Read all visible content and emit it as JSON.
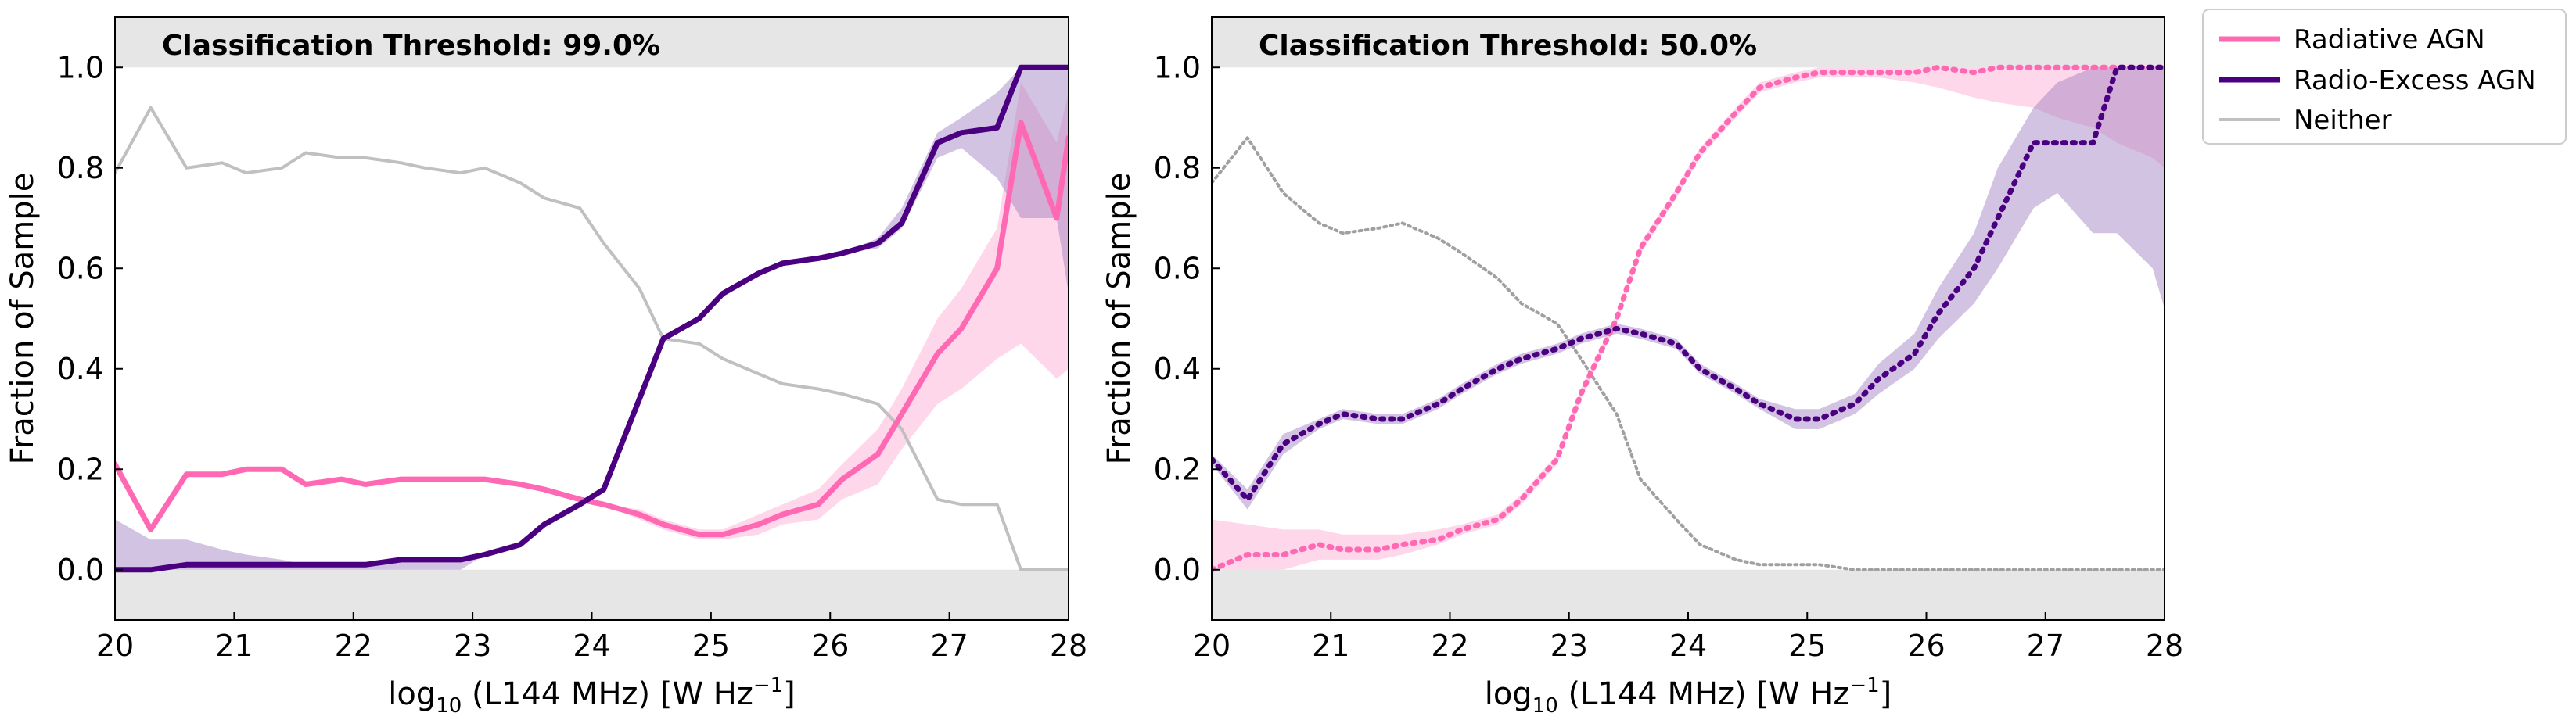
{
  "colors": {
    "radiative": "#ff69b4",
    "radiative_band": "#ffb6d9",
    "radio_excess": "#4b0082",
    "radio_excess_band": "#9b7bbf",
    "neither": "#c0c0c0",
    "neither_dotted": "#a0a0a0",
    "shade": "#e6e6e6"
  },
  "legend": {
    "radiative": "Radiative AGN",
    "radio_excess": "Radio-Excess AGN",
    "neither": "Neither"
  },
  "axes": {
    "xlabel_prefix": "log",
    "xlabel_sub": "10",
    "xlabel_main": " (L144 MHz)  [W Hz",
    "xlabel_sup": "−1",
    "xlabel_close": "]",
    "ylabel": "Fraction of Sample",
    "xticks": [
      "20",
      "21",
      "22",
      "23",
      "24",
      "25",
      "26",
      "27",
      "28"
    ],
    "yticks": [
      "0.0",
      "0.2",
      "0.4",
      "0.6",
      "0.8",
      "1.0"
    ]
  },
  "chart_data": [
    {
      "type": "line",
      "title": "Classification Threshold: 99.0%",
      "line_style": "solid",
      "xlim": [
        20,
        28
      ],
      "ylim": [
        -0.1,
        1.1
      ],
      "x": [
        20.0,
        20.3,
        20.6,
        20.9,
        21.1,
        21.4,
        21.6,
        21.9,
        22.1,
        22.4,
        22.6,
        22.9,
        23.1,
        23.4,
        23.6,
        23.9,
        24.1,
        24.4,
        24.6,
        24.9,
        25.1,
        25.4,
        25.6,
        25.9,
        26.1,
        26.4,
        26.6,
        26.9,
        27.1,
        27.4,
        27.6,
        27.9,
        28.0
      ],
      "series": [
        {
          "name": "Radiative AGN",
          "values": [
            0.21,
            0.08,
            0.19,
            0.19,
            0.2,
            0.2,
            0.17,
            0.18,
            0.17,
            0.18,
            0.18,
            0.18,
            0.18,
            0.17,
            0.16,
            0.14,
            0.13,
            0.11,
            0.09,
            0.07,
            0.07,
            0.09,
            0.11,
            0.13,
            0.18,
            0.23,
            0.31,
            0.43,
            0.48,
            0.6,
            0.89,
            0.7,
            0.86
          ],
          "band_upper": [
            0.21,
            0.08,
            0.19,
            0.19,
            0.2,
            0.2,
            0.17,
            0.18,
            0.17,
            0.18,
            0.18,
            0.18,
            0.18,
            0.17,
            0.16,
            0.14,
            0.13,
            0.12,
            0.1,
            0.08,
            0.08,
            0.11,
            0.13,
            0.16,
            0.21,
            0.28,
            0.36,
            0.5,
            0.56,
            0.68,
            0.97,
            0.85,
            0.95
          ],
          "band_lower": [
            0.21,
            0.08,
            0.19,
            0.19,
            0.2,
            0.2,
            0.17,
            0.18,
            0.17,
            0.18,
            0.18,
            0.18,
            0.18,
            0.17,
            0.16,
            0.14,
            0.13,
            0.1,
            0.08,
            0.06,
            0.06,
            0.07,
            0.09,
            0.1,
            0.14,
            0.17,
            0.24,
            0.33,
            0.36,
            0.42,
            0.45,
            0.38,
            0.4
          ]
        },
        {
          "name": "Radio-Excess AGN",
          "values": [
            0.0,
            0.0,
            0.01,
            0.01,
            0.01,
            0.01,
            0.01,
            0.01,
            0.01,
            0.02,
            0.02,
            0.02,
            0.03,
            0.05,
            0.09,
            0.13,
            0.16,
            0.34,
            0.46,
            0.5,
            0.55,
            0.59,
            0.61,
            0.62,
            0.63,
            0.65,
            0.69,
            0.85,
            0.87,
            0.88,
            1.0,
            1.0,
            1.0
          ],
          "band_upper": [
            0.1,
            0.06,
            0.06,
            0.04,
            0.03,
            0.02,
            0.01,
            0.01,
            0.01,
            0.02,
            0.02,
            0.02,
            0.03,
            0.05,
            0.09,
            0.13,
            0.16,
            0.34,
            0.46,
            0.5,
            0.55,
            0.59,
            0.61,
            0.62,
            0.63,
            0.66,
            0.72,
            0.87,
            0.9,
            0.95,
            1.0,
            1.0,
            1.0
          ],
          "band_lower": [
            0.0,
            0.0,
            0.0,
            0.0,
            0.0,
            0.0,
            0.0,
            0.0,
            0.0,
            0.0,
            0.0,
            0.0,
            0.03,
            0.05,
            0.09,
            0.13,
            0.16,
            0.34,
            0.46,
            0.5,
            0.55,
            0.59,
            0.61,
            0.62,
            0.63,
            0.64,
            0.68,
            0.82,
            0.84,
            0.78,
            0.7,
            0.7,
            0.55
          ]
        },
        {
          "name": "Neither",
          "values": [
            0.79,
            0.92,
            0.8,
            0.81,
            0.79,
            0.8,
            0.83,
            0.82,
            0.82,
            0.81,
            0.8,
            0.79,
            0.8,
            0.77,
            0.74,
            0.72,
            0.65,
            0.56,
            0.46,
            0.45,
            0.42,
            0.39,
            0.37,
            0.36,
            0.35,
            0.33,
            0.28,
            0.14,
            0.13,
            0.13,
            0.0,
            0.0,
            0.0
          ]
        }
      ]
    },
    {
      "type": "line",
      "title": "Classification Threshold: 50.0%",
      "line_style": "dotted",
      "xlim": [
        20,
        28
      ],
      "ylim": [
        -0.1,
        1.1
      ],
      "x": [
        20.0,
        20.3,
        20.6,
        20.9,
        21.1,
        21.4,
        21.6,
        21.9,
        22.1,
        22.4,
        22.6,
        22.9,
        23.1,
        23.4,
        23.6,
        23.9,
        24.1,
        24.4,
        24.6,
        24.9,
        25.1,
        25.4,
        25.6,
        25.9,
        26.1,
        26.4,
        26.6,
        26.9,
        27.1,
        27.4,
        27.6,
        27.9,
        28.0
      ],
      "series": [
        {
          "name": "Radiative AGN",
          "values": [
            0.0,
            0.03,
            0.03,
            0.05,
            0.04,
            0.04,
            0.05,
            0.06,
            0.08,
            0.1,
            0.14,
            0.22,
            0.35,
            0.5,
            0.64,
            0.75,
            0.83,
            0.91,
            0.96,
            0.98,
            0.99,
            0.99,
            0.99,
            0.99,
            1.0,
            0.99,
            1.0,
            1.0,
            1.0,
            1.0,
            1.0,
            1.0,
            1.0
          ],
          "band_upper": [
            0.1,
            0.09,
            0.08,
            0.08,
            0.07,
            0.07,
            0.07,
            0.08,
            0.09,
            0.11,
            0.15,
            0.23,
            0.36,
            0.51,
            0.65,
            0.76,
            0.84,
            0.92,
            0.97,
            0.99,
            1.0,
            1.0,
            1.0,
            1.0,
            1.0,
            1.0,
            1.0,
            1.0,
            1.0,
            1.0,
            1.0,
            1.0,
            1.0
          ],
          "band_lower": [
            -0.0,
            0.0,
            0.0,
            0.02,
            0.02,
            0.02,
            0.03,
            0.05,
            0.07,
            0.09,
            0.13,
            0.21,
            0.34,
            0.49,
            0.63,
            0.74,
            0.82,
            0.9,
            0.95,
            0.97,
            0.98,
            0.98,
            0.98,
            0.97,
            0.96,
            0.94,
            0.93,
            0.92,
            0.9,
            0.88,
            0.85,
            0.82,
            0.8
          ]
        },
        {
          "name": "Radio-Excess AGN",
          "values": [
            0.22,
            0.14,
            0.25,
            0.29,
            0.31,
            0.3,
            0.3,
            0.33,
            0.36,
            0.4,
            0.42,
            0.44,
            0.46,
            0.48,
            0.47,
            0.45,
            0.4,
            0.36,
            0.33,
            0.3,
            0.3,
            0.33,
            0.38,
            0.43,
            0.51,
            0.6,
            0.7,
            0.85,
            0.85,
            0.85,
            1.0,
            1.0,
            1.0
          ],
          "band_upper": [
            0.23,
            0.16,
            0.27,
            0.3,
            0.32,
            0.31,
            0.31,
            0.34,
            0.37,
            0.41,
            0.43,
            0.45,
            0.47,
            0.49,
            0.48,
            0.46,
            0.41,
            0.37,
            0.34,
            0.32,
            0.32,
            0.35,
            0.41,
            0.47,
            0.56,
            0.67,
            0.8,
            0.92,
            0.97,
            1.0,
            1.0,
            1.0,
            1.0
          ],
          "band_lower": [
            0.21,
            0.12,
            0.23,
            0.28,
            0.3,
            0.29,
            0.29,
            0.32,
            0.35,
            0.39,
            0.41,
            0.43,
            0.45,
            0.47,
            0.46,
            0.44,
            0.39,
            0.35,
            0.32,
            0.28,
            0.28,
            0.31,
            0.35,
            0.4,
            0.46,
            0.53,
            0.6,
            0.72,
            0.75,
            0.67,
            0.67,
            0.6,
            0.52
          ]
        },
        {
          "name": "Neither",
          "values": [
            0.77,
            0.86,
            0.75,
            0.69,
            0.67,
            0.68,
            0.69,
            0.66,
            0.63,
            0.58,
            0.53,
            0.49,
            0.42,
            0.31,
            0.18,
            0.1,
            0.05,
            0.02,
            0.01,
            0.01,
            0.01,
            0.0,
            0.0,
            0.0,
            0.0,
            0.0,
            0.0,
            0.0,
            0.0,
            0.0,
            0.0,
            0.0,
            0.0
          ]
        }
      ]
    }
  ]
}
